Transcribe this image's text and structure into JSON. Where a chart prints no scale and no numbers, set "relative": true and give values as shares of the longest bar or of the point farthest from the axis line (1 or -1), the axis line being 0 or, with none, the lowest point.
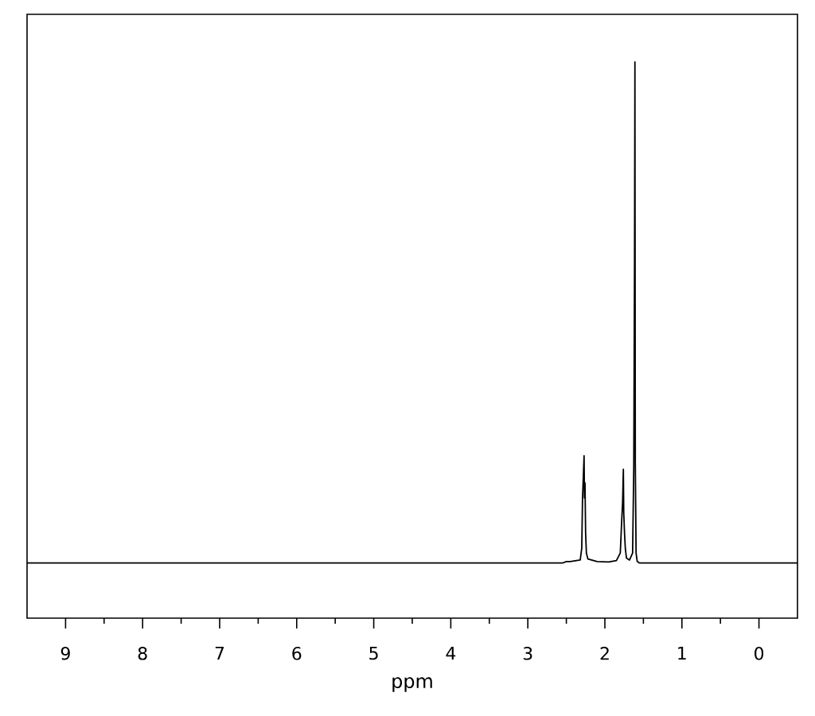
{
  "chart_data": {
    "type": "line",
    "xlabel": "ppm",
    "relative": true,
    "color": "#000000",
    "marker": "none",
    "line_style": "solid",
    "grid": false,
    "xlim": [
      9.5,
      -0.5
    ],
    "xticks": [
      9,
      8,
      7,
      6,
      5,
      4,
      3,
      2,
      1,
      0
    ],
    "x": [
      9.5,
      2.55,
      2.5,
      2.45,
      2.32,
      2.3,
      2.29,
      2.28,
      2.27,
      2.265,
      2.258,
      2.25,
      2.24,
      2.22,
      2.1,
      1.95,
      1.85,
      1.8,
      1.78,
      1.77,
      1.76,
      1.755,
      1.745,
      1.735,
      1.72,
      1.68,
      1.64,
      1.625,
      1.615,
      1.61,
      1.605,
      1.595,
      1.58,
      1.55,
      -0.5
    ],
    "values": [
      0,
      0,
      0.003,
      0.003,
      0.006,
      0.03,
      0.13,
      0.17,
      0.214,
      0.13,
      0.16,
      0.06,
      0.02,
      0.008,
      0.003,
      0.002,
      0.005,
      0.02,
      0.09,
      0.12,
      0.187,
      0.1,
      0.06,
      0.03,
      0.01,
      0.006,
      0.02,
      0.19,
      0.6,
      1,
      0.2,
      0.02,
      0.003,
      0,
      0
    ]
  }
}
